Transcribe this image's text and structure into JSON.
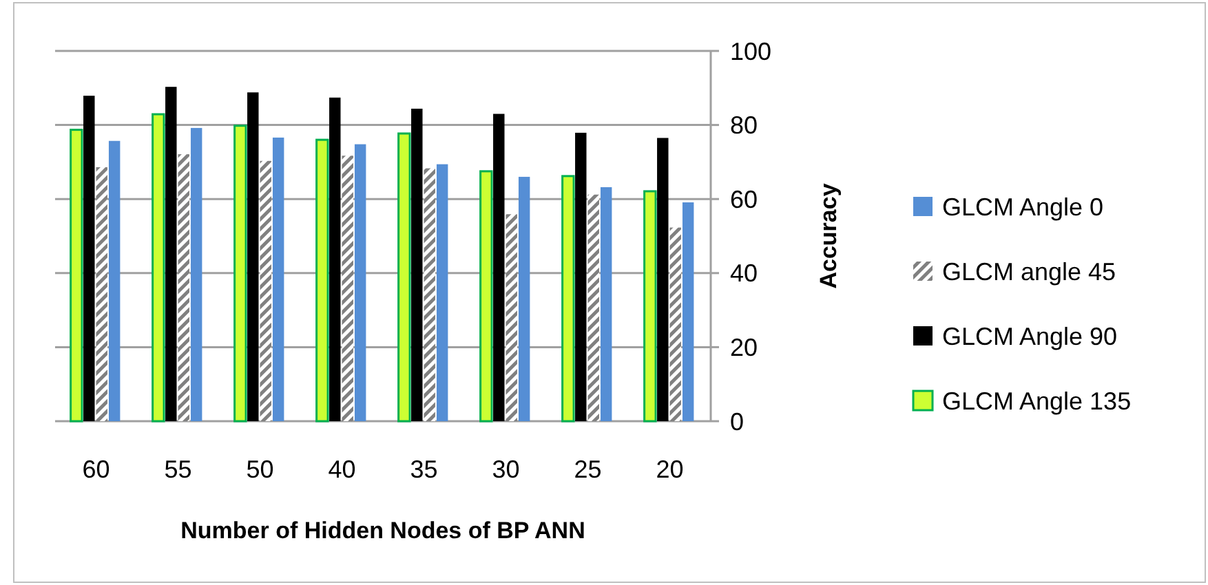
{
  "chart_data": {
    "type": "bar",
    "xlabel": "Number of Hidden Nodes of BP ANN",
    "ylabel": "Accuracy",
    "categories": [
      "60",
      "55",
      "50",
      "40",
      "35",
      "30",
      "25",
      "20"
    ],
    "series": [
      {
        "name": "GLCM Angle 135",
        "color": "#ccff33",
        "values": [
          78.7,
          82.9,
          79.8,
          76.0,
          77.7,
          67.5,
          66.2,
          62.1
        ]
      },
      {
        "name": "GLCM Angle 90",
        "color": "#000000",
        "values": [
          87.9,
          90.3,
          88.8,
          87.4,
          84.4,
          83.0,
          77.9,
          76.5
        ]
      },
      {
        "name": "GLCM angle 45",
        "color": "#808080",
        "values": [
          68.6,
          72.1,
          70.3,
          71.7,
          68.3,
          55.9,
          61.2,
          52.3
        ]
      },
      {
        "name": "GLCM Angle 0",
        "color": "#558ed5",
        "values": [
          75.7,
          79.2,
          76.6,
          74.8,
          69.4,
          66.0,
          63.2,
          59.1
        ]
      }
    ],
    "ylim": [
      0,
      100
    ],
    "yticks": [
      0,
      20,
      40,
      60,
      80,
      100
    ],
    "grid": true,
    "legend": "right"
  }
}
